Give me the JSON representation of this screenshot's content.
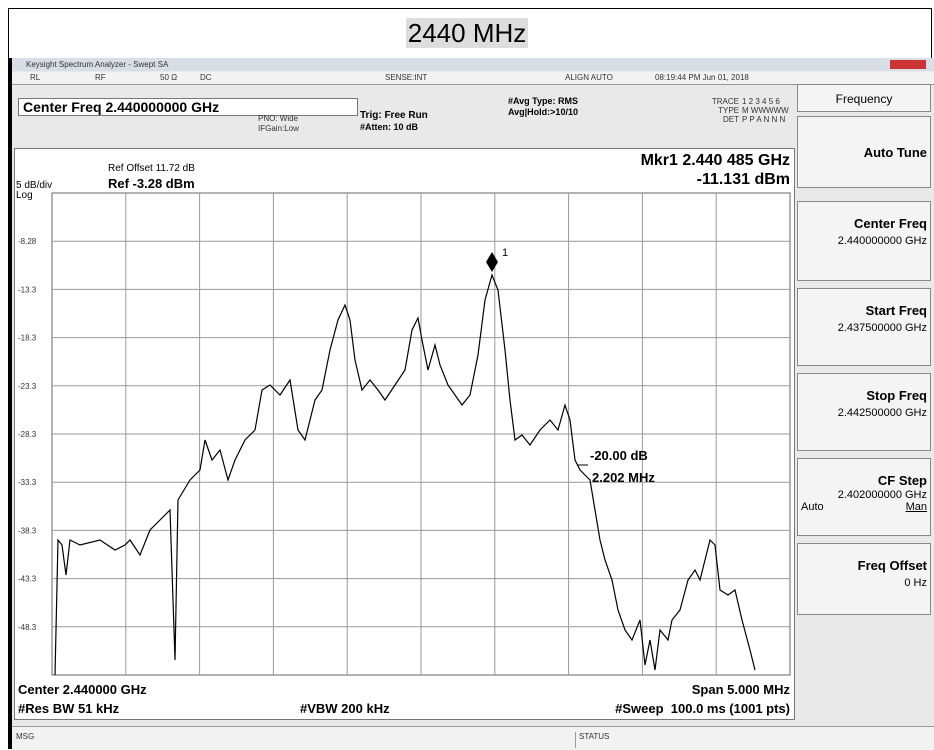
{
  "title": "2440 MHz",
  "window": {
    "title": "Keysight Spectrum Analyzer - Swept SA"
  },
  "status_bar": {
    "rl": "RL",
    "rf": "RF",
    "impedance": "50 Ω",
    "coupling": "DC",
    "sense": "SENSE:INT",
    "align": "ALIGN AUTO",
    "datetime": "08:19:44 PM Jun 01, 2018"
  },
  "settings": {
    "center_freq": "Center Freq 2.440000000 GHz",
    "pno": "PNO: Wide",
    "ifgain": "IFGain:Low",
    "trig": "Trig: Free Run",
    "atten": "#Atten: 10 dB",
    "avg_type": "#Avg Type: RMS",
    "avg_hold": "Avg|Hold:>10/10",
    "trace": "TRACE",
    "trace_nums": "1 2 3 4 5 6",
    "type": "TYPE",
    "type_vals": "M WWWWW",
    "det": "DET",
    "det_vals": "P P A N N N"
  },
  "graph": {
    "ref_offset": "Ref Offset 11.72 dB",
    "ref_level": "Ref -3.28 dBm",
    "scale": "5 dB/div",
    "scale_type": "Log",
    "marker_freq": "Mkr1 2.440 485 GHz",
    "marker_level": "-11.131 dBm",
    "marker_id": "1",
    "y_labels": [
      "-8.28",
      "-13.3",
      "-18.3",
      "-23.3",
      "-28.3",
      "-33.3",
      "-38.3",
      "-43.3",
      "-48.3"
    ],
    "annotation_db": "-20.00 dB",
    "annotation_bw": "2.202 MHz",
    "center": "Center 2.440000 GHz",
    "span": "Span 5.000 MHz",
    "res_bw": "#Res BW 51 kHz",
    "vbw": "#VBW 200 kHz",
    "sweep": "#Sweep  100.0 ms (1001 pts)"
  },
  "softkeys": {
    "menu": "Frequency",
    "items": [
      {
        "label": "Auto Tune"
      },
      {
        "label": "Center Freq",
        "value": "2.440000000 GHz"
      },
      {
        "label": "Start Freq",
        "value": "2.437500000 GHz"
      },
      {
        "label": "Stop Freq",
        "value": "2.442500000 GHz"
      },
      {
        "label": "CF Step",
        "value": "2.402000000 GHz",
        "auto": "Auto",
        "man": "Man"
      },
      {
        "label": "Freq Offset",
        "value": "0 Hz"
      }
    ]
  },
  "footer": {
    "msg": "MSG",
    "status": "STATUS"
  }
}
